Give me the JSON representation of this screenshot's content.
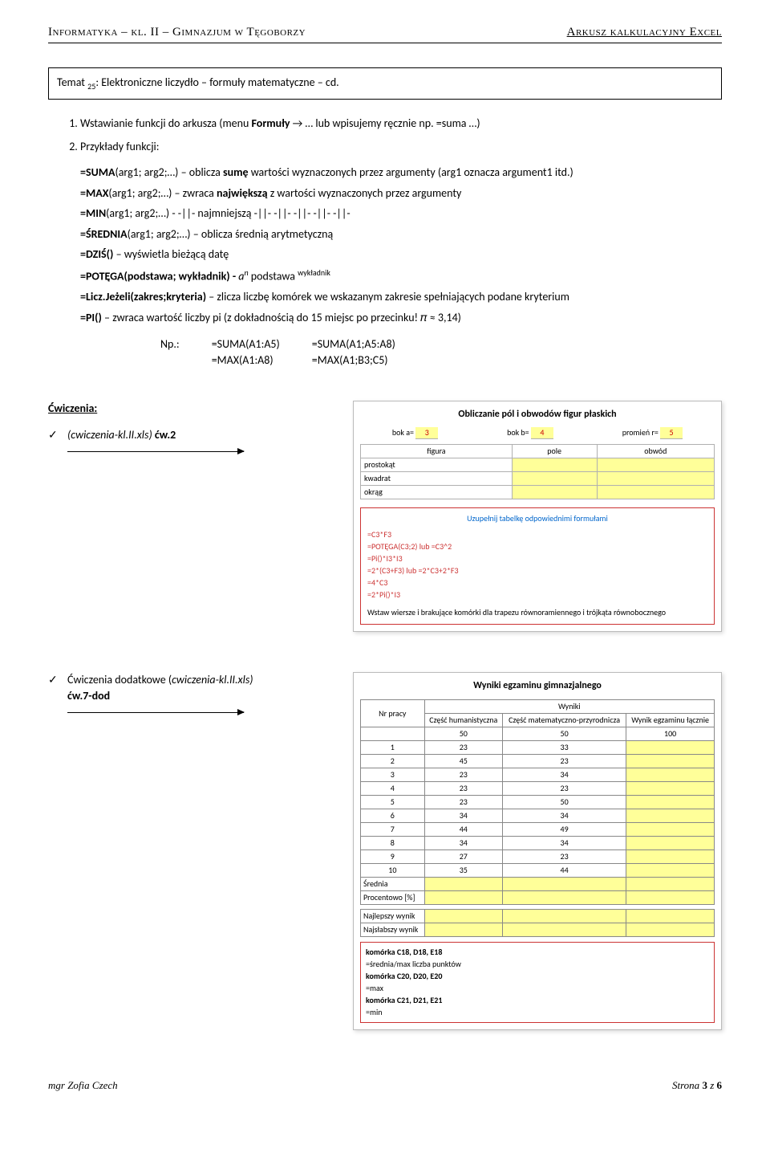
{
  "header": {
    "left": "Informatyka – kl. II – Gimnazjum w Tęgoborzy",
    "right": "Arkusz kalkulacyjny Excel"
  },
  "topic": {
    "prefix": "Temat ",
    "num": "25",
    "text": ": Elektroniczne liczydło – formuły matematyczne – cd."
  },
  "item1": {
    "a": "Wstawianie funkcji do arkusza (menu ",
    "b": "Formuły",
    "c": " → … lub wpisujemy ręcznie np. =suma …)"
  },
  "item2": "Przykłady funkcji:",
  "formulas": {
    "suma_a": "=SUMA",
    "suma_b": "(arg1; arg2;…) – oblicza ",
    "suma_c": "sumę",
    "suma_d": " wartości wyznaczonych przez argumenty (arg1 oznacza argument1 itd.)",
    "max_a": "=MAX",
    "max_b": "(arg1; arg2;…) – zwraca ",
    "max_c": "największą",
    "max_d": " z wartości wyznaczonych przez argumenty",
    "min_a": "=MIN",
    "min_b": "(arg1; arg2;…) -  -||-    najmniejszą   -||-     -||-       -||-       -||-         -||-",
    "srednia_a": "=ŚREDNIA",
    "srednia_b": "(arg1; arg2;…) – oblicza średnią arytmetyczną",
    "dzis_a": "=DZIŚ()",
    "dzis_b": " – wyświetla bieżącą datę",
    "potega_a": "=POTĘGA(podstawa; wykładnik) - ",
    "potega_b": "a",
    "potega_n": "n",
    "potega_c": "  podstawa ",
    "potega_d": "wykładnik",
    "licz_a": "=Licz.Jeżeli(zakres;kryteria)",
    "licz_b": " – zlicza liczbę komórek we wskazanym zakresie spełniających podane kryterium",
    "pi_a": "=PI()",
    "pi_b": " – zwraca wartość liczby pi (z dokładnością do 15 miejsc po przecinku! 𝜋 ≈ 3,14)"
  },
  "np": {
    "label": "Np.:",
    "c1r1": "=SUMA(A1:A5)",
    "c2r1": "=SUMA(A1;A5:A8)",
    "c1r2": "=MAX(A1:A8)",
    "c2r2": "=MAX(A1;B3;C5)"
  },
  "exercises": {
    "title": "Ćwiczenia:",
    "e1_a": "(cwiczenia-kl.II.xls) ",
    "e1_b": "ćw.2",
    "e2_a": "Ćwiczenia dodatkowe (",
    "e2_b": "cwiczenia-kl.II.xls)",
    "e2_c": "ćw.7-dod"
  },
  "screenshot1": {
    "title": "Obliczanie pól i obwodów figur płaskich",
    "bok_a": "bok a=",
    "val_a": "3",
    "bok_b": "bok b=",
    "val_b": "4",
    "promien": "promień r=",
    "val_r": "5",
    "h_figura": "figura",
    "h_pole": "pole",
    "h_obwod": "obwód",
    "r1": "prostokąt",
    "r2": "kwadrat",
    "r3": "okrąg",
    "caption": "Uzupełnij tabelkę odpowiednimi formułami",
    "f1": "=C3*F3",
    "f2": "=POTĘGA(C3;2) lub =C3^2",
    "f3": "=Pi()*I3*I3",
    "f4": "=2*(C3+F3) lub =2*C3+2*F3",
    "f5": "=4*C3",
    "f6": "=2*Pi()*I3",
    "foot": "Wstaw wiersze i brakujące komórki dla trapezu równoramiennego i trójkąta równobocznego"
  },
  "screenshot2": {
    "title": "Wyniki egzaminu gimnazjalnego",
    "h_wyniki": "Wyniki",
    "h_nr": "Nr pracy",
    "h_hum": "Część humanistyczna",
    "h_mat": "Część matematyczno-przyrodnicza",
    "h_lacz": "Wynik egzaminu łącznie",
    "max1": "50",
    "max2": "50",
    "max3": "100",
    "rows": [
      [
        "1",
        "23",
        "33",
        ""
      ],
      [
        "2",
        "45",
        "23",
        ""
      ],
      [
        "3",
        "23",
        "34",
        ""
      ],
      [
        "4",
        "23",
        "23",
        ""
      ],
      [
        "5",
        "23",
        "50",
        ""
      ],
      [
        "6",
        "34",
        "34",
        ""
      ],
      [
        "7",
        "44",
        "49",
        ""
      ],
      [
        "8",
        "34",
        "34",
        ""
      ],
      [
        "9",
        "27",
        "23",
        ""
      ],
      [
        "10",
        "35",
        "44",
        ""
      ]
    ],
    "srednia": "Średnia",
    "procent": "Procentowo [%]",
    "najlepszy": "Najlepszy wynik",
    "najslabszy": "Najsłabszy wynik",
    "hint": {
      "l1a": "komórka C18, D18, E18",
      "l1b": "=średnia/max liczba punktów",
      "l2a": "komórka C20, D20, E20",
      "l2b": "=max",
      "l3a": "komórka C21, D21, E21",
      "l3b": "=min"
    }
  },
  "footer": {
    "left": "mgr Zofia Czech",
    "right_a": "Strona ",
    "right_b": "3",
    "right_c": " z ",
    "right_d": "6"
  }
}
